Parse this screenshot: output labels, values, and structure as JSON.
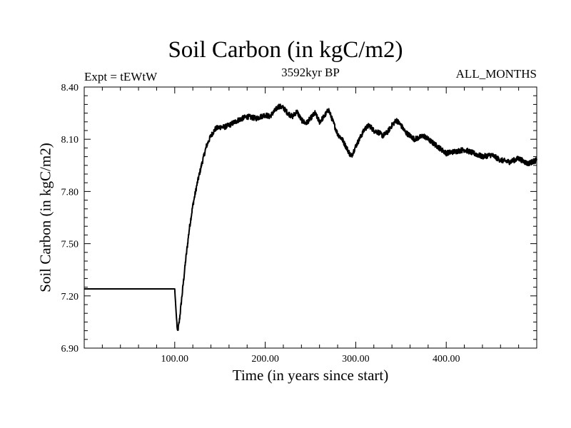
{
  "chart_data": {
    "type": "line",
    "title": "Soil Carbon (in kgC/m2)",
    "subtitle": "3592kyr BP",
    "experiment": "Expt = tEWtW",
    "period": "ALL_MONTHS",
    "xlabel": "Time (in years since start)",
    "ylabel": "Soil Carbon (in kgC/m2)",
    "xlim": [
      0,
      500
    ],
    "ylim": [
      6.9,
      8.4
    ],
    "x_ticks": [
      100,
      200,
      300,
      400
    ],
    "x_tick_labels": [
      "100.00",
      "200.00",
      "300.00",
      "400.00"
    ],
    "y_ticks": [
      6.9,
      7.2,
      7.5,
      7.8,
      8.1,
      8.4
    ],
    "y_tick_labels": [
      "6.90",
      "7.20",
      "7.50",
      "7.80",
      "8.10",
      "8.40"
    ],
    "grid": false,
    "series": [
      {
        "name": "Soil Carbon",
        "x": [
          0,
          100,
          101,
          103,
          105,
          108,
          112,
          116,
          120,
          125,
          130,
          135,
          140,
          145,
          150,
          155,
          160,
          170,
          180,
          190,
          200,
          205,
          210,
          215,
          220,
          225,
          230,
          235,
          240,
          245,
          250,
          255,
          260,
          265,
          270,
          275,
          280,
          285,
          290,
          295,
          300,
          305,
          310,
          315,
          320,
          325,
          330,
          335,
          340,
          345,
          350,
          355,
          360,
          365,
          370,
          375,
          380,
          390,
          400,
          410,
          420,
          430,
          440,
          450,
          460,
          470,
          480,
          490,
          500
        ],
        "y": [
          7.24,
          7.24,
          7.15,
          6.99,
          7.05,
          7.2,
          7.4,
          7.58,
          7.72,
          7.85,
          7.96,
          8.06,
          8.12,
          8.16,
          8.17,
          8.17,
          8.18,
          8.21,
          8.23,
          8.22,
          8.24,
          8.23,
          8.26,
          8.29,
          8.28,
          8.25,
          8.23,
          8.26,
          8.21,
          8.19,
          8.22,
          8.25,
          8.2,
          8.23,
          8.27,
          8.2,
          8.13,
          8.1,
          8.05,
          8.0,
          8.06,
          8.11,
          8.16,
          8.18,
          8.15,
          8.14,
          8.12,
          8.14,
          8.18,
          8.21,
          8.18,
          8.14,
          8.12,
          8.1,
          8.11,
          8.12,
          8.1,
          8.06,
          8.02,
          8.03,
          8.04,
          8.02,
          8.0,
          8.01,
          7.98,
          7.97,
          7.99,
          7.96,
          7.98
        ]
      }
    ]
  }
}
